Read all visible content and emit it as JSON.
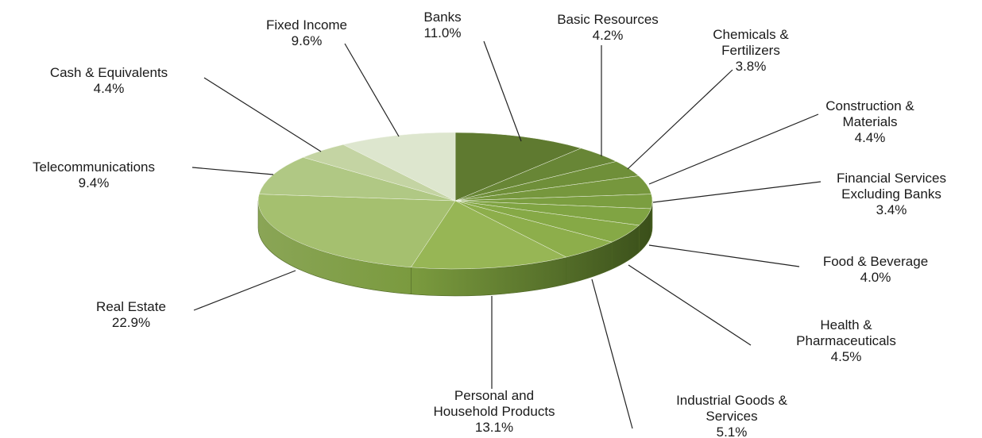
{
  "chart_data": {
    "type": "pie",
    "style": "3d",
    "slices": [
      {
        "label": [
          "Banks"
        ],
        "value": 11.0,
        "pct": "11.0%",
        "color": "#5f7a30"
      },
      {
        "label": [
          "Basic Resources"
        ],
        "value": 4.2,
        "pct": "4.2%",
        "color": "#688636"
      },
      {
        "label": [
          "Chemicals &",
          "Fertilizers"
        ],
        "value": 3.8,
        "pct": "3.8%",
        "color": "#6f8f39"
      },
      {
        "label": [
          "Construction &",
          "Materials"
        ],
        "value": 4.4,
        "pct": "4.4%",
        "color": "#76973d"
      },
      {
        "label": [
          "Financial Services",
          "Excluding Banks"
        ],
        "value": 3.4,
        "pct": "3.4%",
        "color": "#7b9e40"
      },
      {
        "label": [
          "Food & Beverage"
        ],
        "value": 4.0,
        "pct": "4.0%",
        "color": "#80a443"
      },
      {
        "label": [
          "Health &",
          "Pharmaceuticals"
        ],
        "value": 4.5,
        "pct": "4.5%",
        "color": "#86a946"
      },
      {
        "label": [
          "Industrial Goods &",
          "Services"
        ],
        "value": 5.1,
        "pct": "5.1%",
        "color": "#8dae4b"
      },
      {
        "label": [
          "Personal and",
          "Household Products"
        ],
        "value": 13.1,
        "pct": "13.1%",
        "color": "#97b655"
      },
      {
        "label": [
          "Real Estate"
        ],
        "value": 22.9,
        "pct": "22.9%",
        "color": "#a5c06f"
      },
      {
        "label": [
          "Telecommunications"
        ],
        "value": 9.4,
        "pct": "9.4%",
        "color": "#b0c884"
      },
      {
        "label": [
          "Cash &  Equivalents"
        ],
        "value": 4.4,
        "pct": "4.4%",
        "color": "#c4d4a3"
      },
      {
        "label": [
          "Fixed Income"
        ],
        "value": 9.6,
        "pct": "9.6%",
        "color": "#dde6ce"
      }
    ]
  }
}
